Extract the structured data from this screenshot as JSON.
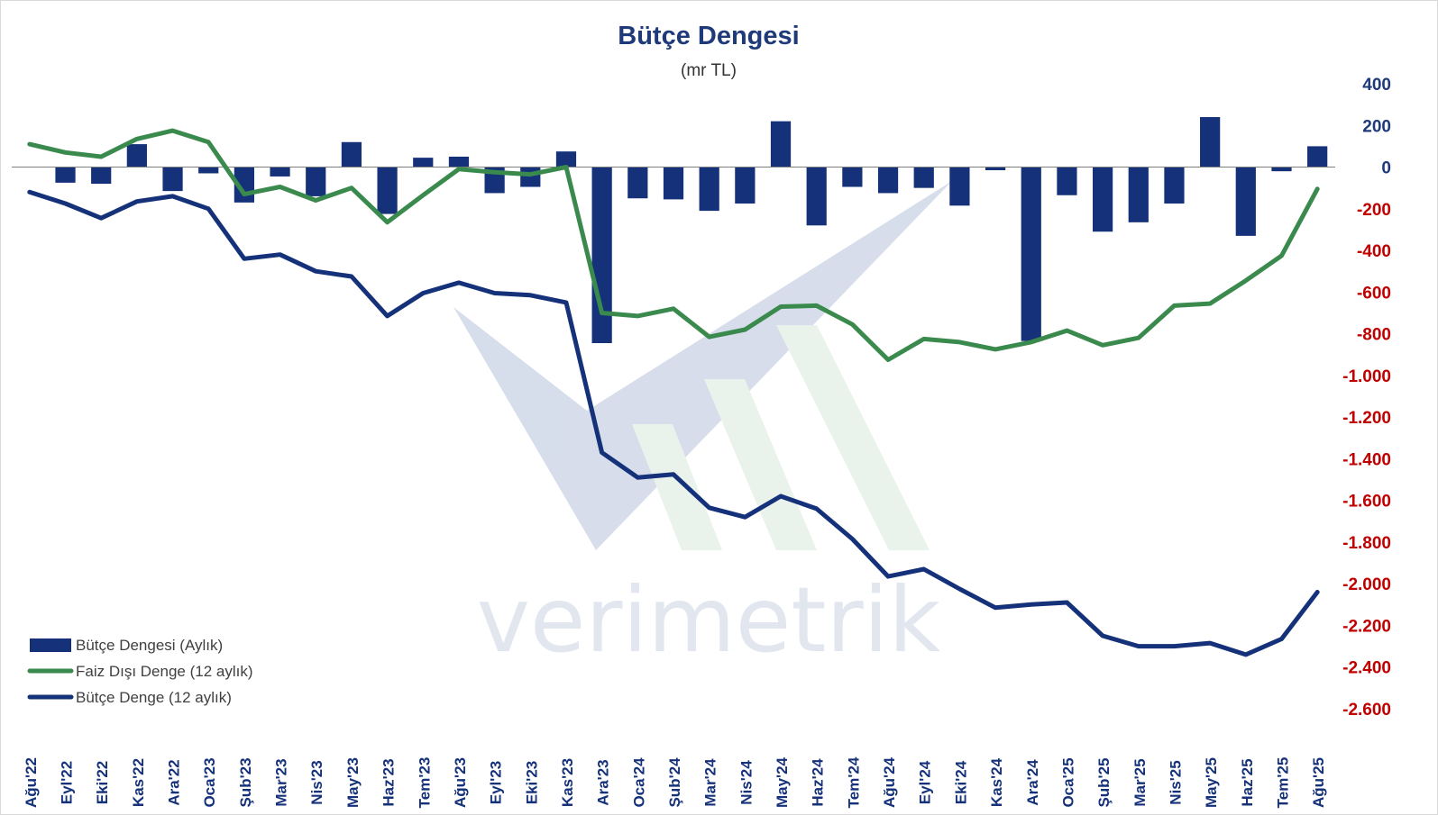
{
  "chart_data": {
    "type": "bar+line",
    "title": "Bütçe Dengesi",
    "subtitle": "(mr TL)",
    "watermark": "verimetrik",
    "categories": [
      "Ağu'22",
      "Eyl'22",
      "Eki'22",
      "Kas'22",
      "Ara'22",
      "Oca'23",
      "Şub'23",
      "Mar'23",
      "Nis'23",
      "May'23",
      "Haz'23",
      "Tem'23",
      "Ağu'23",
      "Eyl'23",
      "Eki'23",
      "Kas'23",
      "Ara'23",
      "Oca'24",
      "Şub'24",
      "Mar'24",
      "Nis'24",
      "May'24",
      "Haz'24",
      "Tem'24",
      "Ağu'24",
      "Eyl'24",
      "Eki'24",
      "Kas'24",
      "Ara'24",
      "Oca'25",
      "Şub'25",
      "Mar'25",
      "Nis'25",
      "May'25",
      "Haz'25",
      "Tem'25",
      "Ağu'25"
    ],
    "ylim": [
      -2600,
      400
    ],
    "yticks": [
      {
        "value": 400,
        "label": "400"
      },
      {
        "value": 200,
        "label": "200"
      },
      {
        "value": 0,
        "label": "0"
      },
      {
        "value": -200,
        "label": "-200"
      },
      {
        "value": -400,
        "label": "-400"
      },
      {
        "value": -600,
        "label": "-600"
      },
      {
        "value": -800,
        "label": "-800"
      },
      {
        "value": -1000,
        "label": "-1.000"
      },
      {
        "value": -1200,
        "label": "-1.200"
      },
      {
        "value": -1400,
        "label": "-1.400"
      },
      {
        "value": -1600,
        "label": "-1.600"
      },
      {
        "value": -1800,
        "label": "-1.800"
      },
      {
        "value": -2000,
        "label": "-2.000"
      },
      {
        "value": -2200,
        "label": "-2.200"
      },
      {
        "value": -2400,
        "label": "-2.400"
      },
      {
        "value": -2600,
        "label": "-2.600"
      }
    ],
    "grid": false,
    "legend_position": "bottom-left",
    "series": [
      {
        "name": "Bütçe Dengesi (Aylık)",
        "kind": "bar",
        "color": "#14317a",
        "values": [
          0,
          -75,
          -80,
          110,
          -115,
          -30,
          -170,
          -45,
          -140,
          120,
          -225,
          45,
          50,
          -125,
          -95,
          75,
          -845,
          -150,
          -155,
          -210,
          -175,
          220,
          -280,
          -95,
          -125,
          -100,
          -185,
          -15,
          -835,
          -135,
          -310,
          -265,
          -175,
          240,
          -330,
          -20,
          100
        ]
      },
      {
        "name": "Faiz Dışı Denge (12 aylık)",
        "kind": "line",
        "color": "#3a8a4e",
        "values": [
          110,
          70,
          50,
          135,
          175,
          120,
          -130,
          -95,
          -160,
          -100,
          -265,
          -135,
          -10,
          -25,
          -35,
          0,
          -700,
          -715,
          -680,
          -815,
          -780,
          -670,
          -665,
          -755,
          -925,
          -825,
          -840,
          -875,
          -840,
          -785,
          -855,
          -820,
          -665,
          -655,
          -545,
          -425,
          -105
        ]
      },
      {
        "name": "Bütçe Denge (12 aylık)",
        "kind": "line",
        "color": "#14317a",
        "values": [
          -120,
          -175,
          -245,
          -165,
          -140,
          -200,
          -440,
          -420,
          -500,
          -525,
          -715,
          -605,
          -555,
          -605,
          -615,
          -650,
          -1370,
          -1490,
          -1475,
          -1635,
          -1680,
          -1580,
          -1640,
          -1785,
          -1965,
          -1930,
          -2025,
          -2115,
          -2100,
          -2090,
          -2250,
          -2300,
          -2300,
          -2285,
          -2340,
          -2265,
          -2040
        ]
      }
    ]
  },
  "colors": {
    "title": "#1f3a7a",
    "positive_tick": "#1f3a7a",
    "negative_tick": "#c00000",
    "watermark": "#c9d2e3"
  }
}
